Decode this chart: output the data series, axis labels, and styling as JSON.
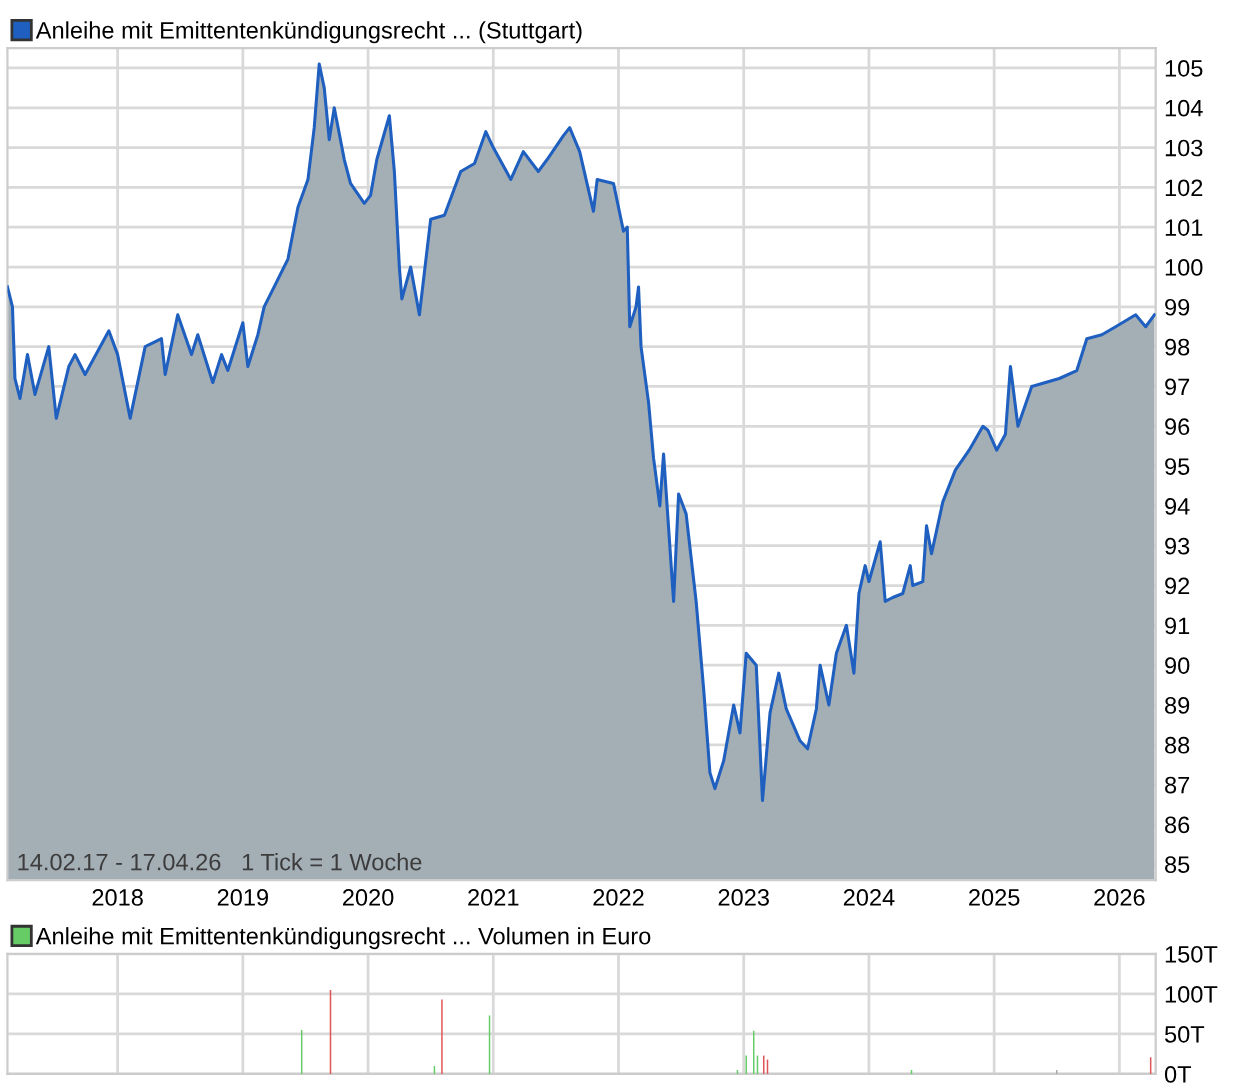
{
  "chart_data": [
    {
      "type": "area",
      "legend": "top left",
      "grid": true,
      "line_style": "solid",
      "marker": "none",
      "xlim": [
        2017.12,
        2026.29
      ],
      "xticks": [
        2018,
        2019,
        2020,
        2021,
        2022,
        2023,
        2024,
        2025,
        2026
      ],
      "ylim": [
        84.6,
        105.5
      ],
      "yticks": [
        85,
        86,
        87,
        88,
        89,
        90,
        91,
        92,
        93,
        94,
        95,
        96,
        97,
        98,
        99,
        100,
        101,
        102,
        103,
        104,
        105
      ],
      "annotations": [
        "14.02.17 - 17.04.26   1 Tick = 1 Woche"
      ],
      "series": [
        {
          "name": "Anleihe mit Emittentenkündigungsrecht ... (Stuttgart)",
          "color": "#1f5fbf",
          "x": [
            2017.12,
            2017.16,
            2017.18,
            2017.22,
            2017.28,
            2017.34,
            2017.45,
            2017.51,
            2017.61,
            2017.66,
            2017.74,
            2017.93,
            2018.0,
            2018.1,
            2018.22,
            2018.35,
            2018.38,
            2018.48,
            2018.59,
            2018.64,
            2018.76,
            2018.83,
            2018.88,
            2019.0,
            2019.04,
            2019.12,
            2019.17,
            2019.25,
            2019.36,
            2019.44,
            2019.52,
            2019.57,
            2019.61,
            2019.65,
            2019.69,
            2019.73,
            2019.81,
            2019.86,
            2019.97,
            2020.02,
            2020.07,
            2020.17,
            2020.21,
            2020.25,
            2020.27,
            2020.34,
            2020.41,
            2020.5,
            2020.61,
            2020.74,
            2020.85,
            2020.94,
            2021.0,
            2021.14,
            2021.24,
            2021.36,
            2021.43,
            2021.56,
            2021.61,
            2021.69,
            2021.8,
            2021.83,
            2021.96,
            2022.04,
            2022.07,
            2022.09,
            2022.14,
            2022.16,
            2022.18,
            2022.24,
            2022.28,
            2022.33,
            2022.36,
            2022.44,
            2022.48,
            2022.54,
            2022.62,
            2022.68,
            2022.73,
            2022.77,
            2022.84,
            2022.92,
            2022.97,
            2023.02,
            2023.1,
            2023.15,
            2023.21,
            2023.28,
            2023.34,
            2023.45,
            2023.51,
            2023.58,
            2023.61,
            2023.68,
            2023.74,
            2023.82,
            2023.88,
            2023.92,
            2023.97,
            2024.0,
            2024.09,
            2024.13,
            2024.19,
            2024.27,
            2024.33,
            2024.35,
            2024.43,
            2024.46,
            2024.5,
            2024.59,
            2024.69,
            2024.8,
            2024.91,
            2024.95,
            2025.02,
            2025.09,
            2025.13,
            2025.19,
            2025.3,
            2025.52,
            2025.66,
            2025.74,
            2025.86,
            2025.97,
            2026.13,
            2026.21,
            2026.28
          ],
          "values": [
            99.5,
            99.0,
            97.2,
            96.7,
            97.8,
            96.8,
            98.0,
            96.2,
            97.5,
            97.8,
            97.3,
            98.4,
            97.8,
            96.2,
            98.0,
            98.2,
            97.3,
            98.8,
            97.8,
            98.3,
            97.1,
            97.8,
            97.4,
            98.6,
            97.5,
            98.3,
            99.0,
            99.5,
            100.2,
            101.5,
            102.2,
            103.5,
            105.1,
            104.5,
            103.2,
            104.0,
            102.7,
            102.1,
            101.6,
            101.8,
            102.7,
            103.8,
            102.4,
            100.0,
            99.2,
            100.0,
            98.8,
            101.2,
            101.3,
            102.4,
            102.6,
            103.4,
            103.0,
            102.2,
            102.9,
            102.4,
            102.7,
            103.3,
            103.5,
            102.9,
            101.4,
            102.2,
            102.1,
            100.9,
            101.0,
            98.5,
            99.0,
            99.5,
            98.0,
            96.6,
            95.2,
            94.0,
            95.3,
            91.6,
            94.3,
            93.8,
            91.6,
            89.4,
            87.3,
            86.9,
            87.6,
            89.0,
            88.3,
            90.3,
            90.0,
            86.6,
            88.8,
            89.8,
            88.9,
            88.1,
            87.9,
            88.9,
            90.0,
            89.0,
            90.3,
            91.0,
            89.8,
            91.8,
            92.5,
            92.1,
            93.1,
            91.6,
            91.7,
            91.8,
            92.5,
            92.0,
            92.1,
            93.5,
            92.8,
            94.1,
            94.9,
            95.4,
            96.0,
            95.9,
            95.4,
            95.8,
            97.5,
            96.0,
            97.0,
            97.2,
            97.4,
            98.2,
            98.3,
            98.5,
            98.8,
            98.5,
            98.8
          ]
        }
      ]
    },
    {
      "type": "bar",
      "legend": "top left",
      "grid": true,
      "tick_labels": "y",
      "xlim": [
        2017.12,
        2026.29
      ],
      "xticks": [
        {
          "value": 2018,
          "label": null
        },
        {
          "value": 2019,
          "label": null
        },
        {
          "value": 2020,
          "label": null
        },
        {
          "value": 2021,
          "label": null
        },
        {
          "value": 2022,
          "label": null
        },
        {
          "value": 2023,
          "label": null
        },
        {
          "value": 2024,
          "label": null
        },
        {
          "value": 2025,
          "label": null
        },
        {
          "value": 2026,
          "label": null
        }
      ],
      "ylim": [
        0,
        150
      ],
      "yticks": [
        {
          "value": 0,
          "label": "0T"
        },
        {
          "value": 50,
          "label": "50T"
        },
        {
          "value": 100,
          "label": "100T"
        },
        {
          "value": 150,
          "label": "150T"
        }
      ],
      "series": [
        {
          "name": "Anleihe mit Emittentenkündigungsrecht ... Volumen in Euro",
          "color": "#66cc66",
          "x": [
            2019.47,
            2019.7,
            2020.53,
            2020.59,
            2020.97,
            2022.95,
            2023.02,
            2023.08,
            2023.11,
            2023.16,
            2023.19,
            2024.34,
            2025.5,
            2026.25
          ],
          "values": [
            55,
            105,
            10,
            93,
            73,
            5,
            23,
            54,
            23,
            23,
            18,
            5,
            5,
            21
          ],
          "colors": [
            "#66cc66",
            "#e05555",
            "#66cc66",
            "#e05555",
            "#66cc66",
            "#66cc66",
            "#66cc66",
            "#66cc66",
            "#66cc66",
            "#e05555",
            "#e05555",
            "#66cc66",
            "#aaaaaa",
            "#e05555"
          ]
        }
      ]
    }
  ]
}
